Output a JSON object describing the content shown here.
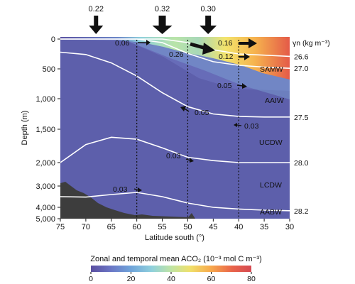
{
  "chart_data": {
    "type": "heatmap",
    "xlabel": "Latitude south (°)",
    "ylabel": "Depth (m)",
    "x_ticks": [
      75,
      70,
      65,
      60,
      55,
      50,
      45,
      40,
      35,
      30
    ],
    "y_ticks": [
      "0",
      "500",
      "1,000",
      "1,500",
      "2,000",
      "3,000",
      "4,000",
      "5,000"
    ],
    "xlim": [
      75,
      30
    ],
    "density_label": "γn (kg m⁻³)",
    "isopycnals": [
      {
        "value": "26.6",
        "depth": [
          0,
          0,
          0,
          0,
          0,
          60,
          180,
          250,
          270,
          290
        ]
      },
      {
        "value": "27.0",
        "depth": [
          0,
          0,
          0,
          0,
          60,
          240,
          380,
          440,
          470,
          490
        ]
      },
      {
        "value": "27.5",
        "depth": [
          220,
          260,
          400,
          620,
          900,
          1130,
          1250,
          1290,
          1300,
          1300
        ]
      },
      {
        "value": "28.0",
        "depth": [
          2000,
          1730,
          1620,
          1650,
          1780,
          1920,
          1970,
          2000,
          2000,
          2000
        ]
      },
      {
        "value": "28.2",
        "depth": [
          3500,
          3520,
          3400,
          3300,
          3500,
          3800,
          4000,
          4150,
          4250,
          4300
        ]
      }
    ],
    "water_masses": [
      "SAMW",
      "AAIW",
      "UCDW",
      "LCDW",
      "AABW"
    ],
    "section_lines": [
      60,
      50,
      40
    ],
    "surface_flux": [
      {
        "value": "0.22",
        "lat": 68
      },
      {
        "value": "0.32",
        "lat": 55
      },
      {
        "value": "0.30",
        "lat": 46
      }
    ],
    "transport_labels": [
      "0.06",
      "0.16",
      "0.26",
      "0.12",
      "0.05",
      "0.05",
      "0.03",
      "0.03",
      "0.03"
    ],
    "colorbar": {
      "title": "Zonal and temporal mean ACO₂ (10⁻³ mol C m⁻³)",
      "ticks": [
        0,
        20,
        40,
        60,
        80
      ],
      "colors": [
        "#5a4ea0",
        "#6a74c4",
        "#6fa4da",
        "#8fd0dc",
        "#bfe4a4",
        "#f0e06a",
        "#f7a84c",
        "#e9644a",
        "#d54a52"
      ]
    }
  }
}
